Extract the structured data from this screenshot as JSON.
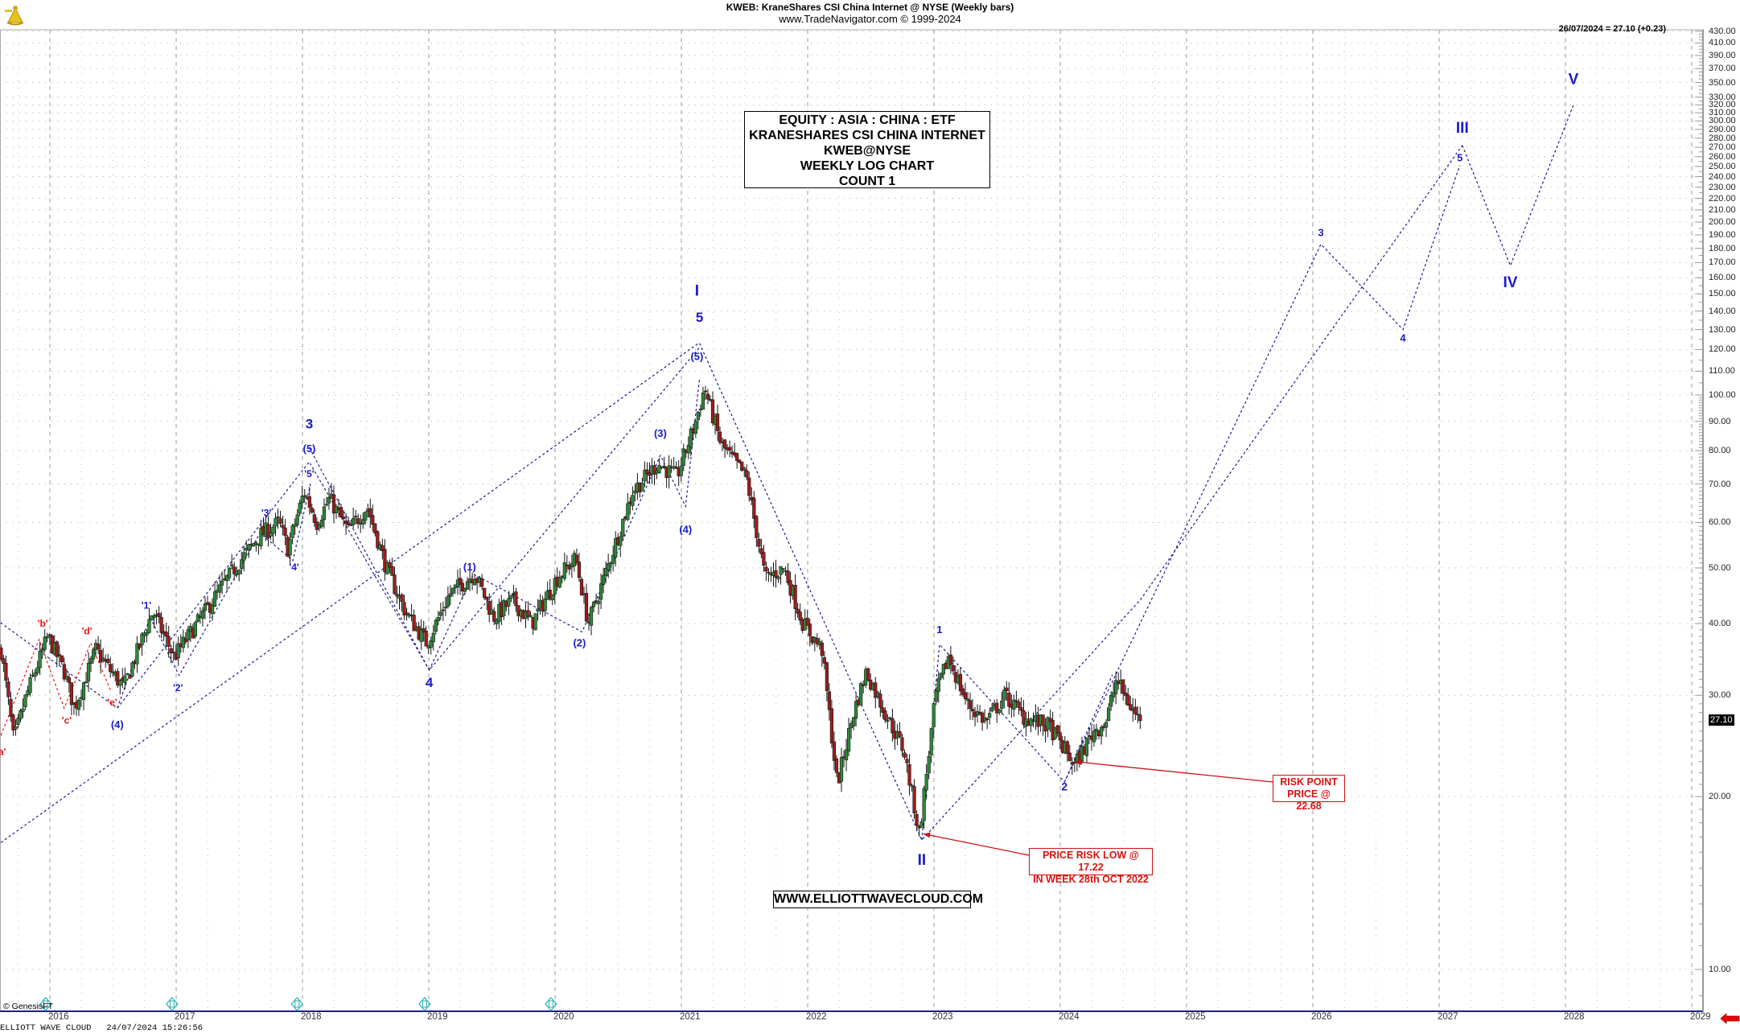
{
  "header": {
    "title": "KWEB:  KraneShares CSI China Internet @ NYSE  (Weekly bars)",
    "subtitle": "www.TradeNavigator.com © 1999-2024"
  },
  "last_bar": {
    "label": "26/07/2024 = 27.10 (+0.23)",
    "price_tag": "27.10"
  },
  "info_box": {
    "line1": "EQUITY : ASIA : CHINA : ETF",
    "line2": "KRANESHARES CSI CHINA INTERNET",
    "line3": "KWEB@NYSE",
    "line4": "WEEKLY LOG CHART",
    "line5": "COUNT 1"
  },
  "website": "WWW.ELLIOTTWAVECLOUD.COM",
  "risk_low": {
    "line1": "PRICE RISK LOW @ 17.22",
    "line2": "IN WEEK 28th OCT 2022"
  },
  "risk_point": {
    "line1": "RISK POINT",
    "line2": "PRICE @ 22.68"
  },
  "copyright": "© GenesisFT",
  "footer": "ELLIOTT WAVE CLOUD   24/07/2024 15:26:56",
  "colors": {
    "wave_blue": "#1a1acc",
    "wave_red": "#ee1111",
    "candle_up": "#2e8b3a",
    "candle_down": "#a01c1c",
    "grid": "#999999",
    "annotation_red": "#cc1111"
  },
  "chart_data": {
    "type": "candlestick",
    "title": "KWEB: KraneShares CSI China Internet @ NYSE (Weekly bars)",
    "xlabel": "",
    "ylabel": "",
    "y_scale": "log",
    "ylim": [
      9,
      430
    ],
    "x_ticks": [
      "2016",
      "2017",
      "2018",
      "2019",
      "2020",
      "2021",
      "2022",
      "2023",
      "2024",
      "2025",
      "2026",
      "2027",
      "2028",
      "2029"
    ],
    "y_ticks": [
      10,
      20,
      30,
      40,
      50,
      60,
      70,
      80,
      90,
      100,
      110,
      120,
      130,
      140,
      150,
      160,
      170,
      180,
      190,
      200,
      210,
      220,
      230,
      240,
      250,
      260,
      270,
      280,
      290,
      300,
      310,
      320,
      330,
      350,
      370,
      390,
      410,
      430
    ],
    "grid": true,
    "price_path": [
      {
        "t": 2015.55,
        "p": 36
      },
      {
        "t": 2015.65,
        "p": 25
      },
      {
        "t": 2015.75,
        "p": 30
      },
      {
        "t": 2015.92,
        "p": 38
      },
      {
        "t": 2016.05,
        "p": 33
      },
      {
        "t": 2016.13,
        "p": 28.5
      },
      {
        "t": 2016.3,
        "p": 36
      },
      {
        "t": 2016.42,
        "p": 33
      },
      {
        "t": 2016.52,
        "p": 31
      },
      {
        "t": 2016.75,
        "p": 42
      },
      {
        "t": 2016.92,
        "p": 35
      },
      {
        "t": 2017.1,
        "p": 40
      },
      {
        "t": 2017.4,
        "p": 50
      },
      {
        "t": 2017.6,
        "p": 57
      },
      {
        "t": 2017.75,
        "p": 60
      },
      {
        "t": 2017.82,
        "p": 54
      },
      {
        "t": 2017.95,
        "p": 68
      },
      {
        "t": 2018.05,
        "p": 60
      },
      {
        "t": 2018.15,
        "p": 66
      },
      {
        "t": 2018.3,
        "p": 58
      },
      {
        "t": 2018.45,
        "p": 64
      },
      {
        "t": 2018.6,
        "p": 50
      },
      {
        "t": 2018.75,
        "p": 42
      },
      {
        "t": 2018.92,
        "p": 37
      },
      {
        "t": 2019.1,
        "p": 45
      },
      {
        "t": 2019.3,
        "p": 49
      },
      {
        "t": 2019.45,
        "p": 41
      },
      {
        "t": 2019.6,
        "p": 44
      },
      {
        "t": 2019.75,
        "p": 40
      },
      {
        "t": 2019.95,
        "p": 48
      },
      {
        "t": 2020.1,
        "p": 52
      },
      {
        "t": 2020.2,
        "p": 40
      },
      {
        "t": 2020.35,
        "p": 50
      },
      {
        "t": 2020.55,
        "p": 68
      },
      {
        "t": 2020.75,
        "p": 76
      },
      {
        "t": 2020.9,
        "p": 72
      },
      {
        "t": 2021.05,
        "p": 90
      },
      {
        "t": 2021.12,
        "p": 103
      },
      {
        "t": 2021.25,
        "p": 82
      },
      {
        "t": 2021.45,
        "p": 72
      },
      {
        "t": 2021.6,
        "p": 48
      },
      {
        "t": 2021.75,
        "p": 50
      },
      {
        "t": 2021.9,
        "p": 40
      },
      {
        "t": 2022.05,
        "p": 36
      },
      {
        "t": 2022.17,
        "p": 21
      },
      {
        "t": 2022.3,
        "p": 28
      },
      {
        "t": 2022.4,
        "p": 33
      },
      {
        "t": 2022.55,
        "p": 28
      },
      {
        "t": 2022.7,
        "p": 24
      },
      {
        "t": 2022.82,
        "p": 17.22
      },
      {
        "t": 2022.95,
        "p": 30
      },
      {
        "t": 2023.05,
        "p": 35
      },
      {
        "t": 2023.2,
        "p": 29
      },
      {
        "t": 2023.35,
        "p": 27
      },
      {
        "t": 2023.5,
        "p": 30
      },
      {
        "t": 2023.65,
        "p": 27.5
      },
      {
        "t": 2023.85,
        "p": 26.5
      },
      {
        "t": 2024.05,
        "p": 22.68
      },
      {
        "t": 2024.2,
        "p": 26
      },
      {
        "t": 2024.3,
        "p": 27
      },
      {
        "t": 2024.38,
        "p": 32
      },
      {
        "t": 2024.5,
        "p": 28.5
      },
      {
        "t": 2024.57,
        "p": 27.1
      }
    ],
    "wave_labels": [
      {
        "text": "'a'",
        "t": 2015.55,
        "p": 23.6,
        "color": "red",
        "size": 12
      },
      {
        "text": "'b'",
        "t": 2015.88,
        "p": 39.5,
        "color": "red",
        "size": 12
      },
      {
        "text": "'c'",
        "t": 2016.07,
        "p": 26.8,
        "color": "red",
        "size": 12
      },
      {
        "text": "'d'",
        "t": 2016.23,
        "p": 38.3,
        "color": "red",
        "size": 12
      },
      {
        "text": "'e'",
        "t": 2016.43,
        "p": 28.8,
        "color": "red",
        "size": 12
      },
      {
        "text": "(4)",
        "t": 2016.47,
        "p": 26.3,
        "color": "blue",
        "size": 13
      },
      {
        "text": "'1'",
        "t": 2016.7,
        "p": 42.5,
        "color": "blue",
        "size": 12
      },
      {
        "text": "'2'",
        "t": 2016.95,
        "p": 30.5,
        "color": "blue",
        "size": 12
      },
      {
        "text": "'3'",
        "t": 2017.65,
        "p": 61.5,
        "color": "blue",
        "size": 12
      },
      {
        "text": "'4'",
        "t": 2017.87,
        "p": 49.5,
        "color": "blue",
        "size": 12
      },
      {
        "text": "'5'",
        "t": 2017.99,
        "p": 72,
        "color": "blue",
        "size": 12
      },
      {
        "text": "(5)",
        "t": 2017.99,
        "p": 79.5,
        "color": "blue",
        "size": 13
      },
      {
        "text": "3",
        "t": 2017.99,
        "p": 87.5,
        "color": "blue",
        "size": 17
      },
      {
        "text": "4",
        "t": 2018.94,
        "p": 31,
        "color": "blue",
        "size": 17
      },
      {
        "text": "(1)",
        "t": 2019.26,
        "p": 49.5,
        "color": "blue",
        "size": 13
      },
      {
        "text": "(2)",
        "t": 2020.13,
        "p": 36.5,
        "color": "blue",
        "size": 13
      },
      {
        "text": "(3)",
        "t": 2020.77,
        "p": 84.5,
        "color": "blue",
        "size": 13
      },
      {
        "text": "(4)",
        "t": 2020.97,
        "p": 57.5,
        "color": "blue",
        "size": 13
      },
      {
        "text": "(5)",
        "t": 2021.06,
        "p": 115,
        "color": "blue",
        "size": 13
      },
      {
        "text": "5",
        "t": 2021.08,
        "p": 134,
        "color": "blue",
        "size": 17
      },
      {
        "text": "I",
        "t": 2021.06,
        "p": 149,
        "color": "blue",
        "size": 19
      },
      {
        "text": "II",
        "t": 2022.84,
        "p": 15.2,
        "color": "blue",
        "size": 19
      },
      {
        "text": "1",
        "t": 2022.98,
        "p": 38.5,
        "color": "blue",
        "size": 13
      },
      {
        "text": "2",
        "t": 2023.97,
        "p": 20.5,
        "color": "blue",
        "size": 14
      },
      {
        "text": "3",
        "t": 2026.0,
        "p": 189,
        "color": "blue",
        "size": 13
      },
      {
        "text": "4",
        "t": 2026.65,
        "p": 124,
        "color": "blue",
        "size": 13
      },
      {
        "text": "5",
        "t": 2027.1,
        "p": 255,
        "color": "blue",
        "size": 13
      },
      {
        "text": "III",
        "t": 2027.12,
        "p": 286,
        "color": "blue",
        "size": 19
      },
      {
        "text": "IV",
        "t": 2027.5,
        "p": 154,
        "color": "blue",
        "size": 19
      },
      {
        "text": "V",
        "t": 2028.0,
        "p": 348,
        "color": "blue",
        "size": 19
      }
    ],
    "wave_lines": [
      {
        "color": "red",
        "points": [
          [
            2015.3,
            34
          ],
          [
            2015.55,
            25.6
          ],
          [
            2015.85,
            37.5
          ],
          [
            2016.05,
            28.5
          ],
          [
            2016.26,
            37
          ],
          [
            2016.42,
            30.5
          ]
        ]
      },
      {
        "color": "blue",
        "points": [
          [
            2015.3,
            44
          ],
          [
            2016.47,
            28.5
          ],
          [
            2016.73,
            41
          ],
          [
            2016.96,
            32.5
          ],
          [
            2017.6,
            57.5
          ],
          [
            2017.86,
            51.5
          ],
          [
            2018.0,
            70
          ]
        ]
      },
      {
        "color": "blue",
        "points": [
          [
            2016.47,
            28.5
          ],
          [
            2017.99,
            76.5
          ],
          [
            2018.94,
            33.2
          ],
          [
            2021.08,
            121
          ]
        ]
      },
      {
        "color": "blue",
        "points": [
          [
            2017.99,
            81
          ],
          [
            2018.94,
            33.2
          ]
        ]
      },
      {
        "color": "blue",
        "points": [
          [
            2018.94,
            33.2
          ],
          [
            2019.29,
            48.8
          ],
          [
            2020.15,
            38.7
          ],
          [
            2020.77,
            78.5
          ],
          [
            2020.97,
            64
          ],
          [
            2021.08,
            107
          ]
        ]
      },
      {
        "color": "blue",
        "points": [
          [
            2015.3,
            15.2
          ],
          [
            2021.07,
            123
          ]
        ]
      },
      {
        "color": "blue",
        "points": [
          [
            2021.08,
            123
          ],
          [
            2022.84,
            16.8
          ],
          [
            2024.57,
            44
          ],
          [
            2027.12,
            272
          ]
        ]
      },
      {
        "color": "blue",
        "points": [
          [
            2022.84,
            16.8
          ],
          [
            2022.98,
            36.8
          ],
          [
            2023.97,
            21.2
          ],
          [
            2026.0,
            183
          ],
          [
            2026.65,
            130
          ],
          [
            2027.1,
            251
          ]
        ]
      },
      {
        "color": "blue",
        "points": [
          [
            2023.97,
            21.2
          ],
          [
            2024.35,
            32.6
          ]
        ]
      },
      {
        "color": "blue",
        "points": [
          [
            2027.12,
            272
          ],
          [
            2027.5,
            168
          ],
          [
            2028.0,
            320
          ]
        ]
      }
    ],
    "annotations": [
      {
        "text": "PRICE RISK LOW @ 17.22 IN WEEK 28th OCT 2022",
        "target_t": 2022.84,
        "target_p": 17.22
      },
      {
        "text": "RISK POINT PRICE @ 22.68",
        "target_t": 2024.03,
        "target_p": 23.0
      }
    ],
    "last_close": 27.1,
    "last_change": 0.23,
    "last_date": "26/07/2024"
  }
}
